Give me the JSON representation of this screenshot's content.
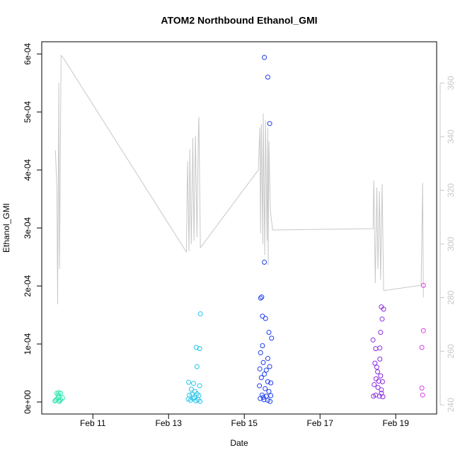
{
  "chart_data": {
    "type": "scatter",
    "title": "ATOM2 Northbound Ethanol_GMI",
    "x_label": "Date",
    "y_label": "Ethanol_GMI",
    "xlim": [
      9.65,
      20.08
    ],
    "xticks": [
      {
        "value": 11,
        "label": "Feb 11"
      },
      {
        "value": 13,
        "label": "Feb 13"
      },
      {
        "value": 15,
        "label": "Feb 15"
      },
      {
        "value": 17,
        "label": "Feb 17"
      },
      {
        "value": 19,
        "label": "Feb 19"
      }
    ],
    "ylim": [
      -2.07e-05,
      0.000621
    ],
    "yticks": [
      {
        "value": 0,
        "label": "0e+00"
      },
      {
        "value": 0.0001,
        "label": "1e-04"
      },
      {
        "value": 0.0002,
        "label": "2e-04"
      },
      {
        "value": 0.0003,
        "label": "3e-04"
      },
      {
        "value": 0.0004,
        "label": "4e-04"
      },
      {
        "value": 0.0005,
        "label": "5e-04"
      },
      {
        "value": 0.0006,
        "label": "6e-04"
      }
    ],
    "y2lim": [
      236.6,
      375.4
    ],
    "y2ticks": [
      240,
      260,
      280,
      300,
      320,
      340,
      360
    ],
    "y2_color": "#c8c8c8",
    "series": [
      {
        "type": "line",
        "axis": "y2",
        "color": "#c8c8c8",
        "x": [
          10.01,
          10.05,
          10.07,
          10.1,
          10.12,
          10.16,
          10.2,
          13.47,
          13.5,
          13.54,
          13.56,
          13.6,
          13.64,
          13.67,
          13.71,
          13.75,
          13.79,
          13.8,
          13.84,
          15.37,
          15.41,
          15.43,
          15.45,
          15.49,
          15.5,
          15.54,
          15.56,
          15.6,
          15.62,
          15.63,
          15.65,
          15.69,
          15.75,
          18.4,
          18.42,
          18.46,
          18.5,
          18.53,
          18.57,
          18.6,
          18.64,
          18.68,
          18.74,
          19.67,
          19.71,
          19.73
        ],
        "values": [
          335.0,
          321.0,
          277.5,
          360.1,
          290.7,
          370.3,
          369.8,
          297.0,
          330.8,
          297.3,
          335.5,
          299.9,
          339.5,
          301.2,
          340.3,
          302.5,
          344.0,
          347.4,
          298.6,
          327.6,
          343.4,
          303.9,
          344.7,
          299.9,
          348.7,
          295.9,
          346.1,
          301.2,
          343.4,
          292.0,
          338.2,
          311.8,
          305.2,
          305.7,
          323.6,
          285.4,
          321.0,
          290.7,
          319.7,
          286.7,
          322.3,
          282.7,
          282.7,
          284.6,
          322.8,
          280.1
        ]
      },
      {
        "type": "points",
        "color": "#2ee6b0",
        "x": [
          10.0,
          10.05,
          10.1,
          10.15,
          10.05,
          10.1,
          10.12,
          10.02,
          10.08,
          10.15,
          10.2,
          10.1
        ],
        "values": [
          2e-06,
          1.5e-05,
          1.6e-05,
          1.5e-05,
          5e-06,
          8e-06,
          1e-06,
          3e-06,
          1.2e-05,
          4e-06,
          7e-06,
          2e-06
        ]
      },
      {
        "type": "points",
        "color": "#22c4e8",
        "x": [
          13.84,
          13.73,
          13.82,
          13.75,
          13.53,
          13.66,
          13.82,
          13.6,
          13.7,
          13.55,
          13.62,
          13.75,
          13.8,
          13.52,
          13.58,
          13.65,
          13.72,
          13.78,
          13.83,
          13.68
        ],
        "values": [
          0.000152,
          9.4e-05,
          9.2e-05,
          6.1e-05,
          3.4e-05,
          3.2e-05,
          2.8e-05,
          2.2e-05,
          1.8e-05,
          1.2e-05,
          1.3e-05,
          1.4e-05,
          1.1e-05,
          5e-06,
          3e-06,
          6e-06,
          2e-06,
          4e-06,
          1e-06,
          8e-06
        ]
      },
      {
        "type": "points",
        "color": "#1f3ef0",
        "x": [
          15.53,
          15.62,
          15.67,
          15.53,
          15.43,
          15.46,
          15.48,
          15.56,
          15.65,
          15.72,
          15.48,
          15.43,
          15.62,
          15.5,
          15.67,
          15.41,
          15.58,
          15.53,
          15.45,
          15.62,
          15.7,
          15.4,
          15.55,
          15.65,
          15.47,
          15.58,
          15.7,
          15.42,
          15.52,
          15.62,
          15.68,
          15.5
        ],
        "values": [
          0.000594,
          0.00056,
          0.00048,
          0.000241,
          0.000179,
          0.000181,
          0.000148,
          0.000144,
          0.00012,
          0.00011,
          9.7e-05,
          8.5e-05,
          7.5e-05,
          6.8e-05,
          6.1e-05,
          5.7e-05,
          5.5e-05,
          4.8e-05,
          4.2e-05,
          3.5e-05,
          3.3e-05,
          2.8e-05,
          2.3e-05,
          1.8e-05,
          1.2e-05,
          1e-05,
          1.1e-05,
          6e-06,
          4e-06,
          3e-06,
          1e-06,
          8e-06
        ]
      },
      {
        "type": "points",
        "color": "#8a2be2",
        "x": [
          18.62,
          18.68,
          18.64,
          18.6,
          18.4,
          18.58,
          18.47,
          18.58,
          18.45,
          18.5,
          18.52,
          18.6,
          18.48,
          18.55,
          18.65,
          18.43,
          18.53,
          18.62,
          18.47,
          18.57,
          18.66,
          18.62,
          18.41
        ],
        "values": [
          0.000164,
          0.00016,
          0.000143,
          0.00012,
          0.000107,
          9.3e-05,
          9.2e-05,
          7.4e-05,
          6.7e-05,
          6e-05,
          5.2e-05,
          4.5e-05,
          4e-05,
          3.6e-05,
          3.5e-05,
          3e-05,
          2.5e-05,
          2.1e-05,
          1.2e-05,
          1e-05,
          9e-06,
          1.5e-05,
          1e-05
        ]
      },
      {
        "type": "points",
        "color": "#d83ee0",
        "x": [
          19.73,
          19.73,
          19.69,
          19.69,
          19.71
        ],
        "values": [
          0.000201,
          0.000123,
          9.4e-05,
          2.4e-05,
          1.2e-05
        ]
      }
    ]
  }
}
